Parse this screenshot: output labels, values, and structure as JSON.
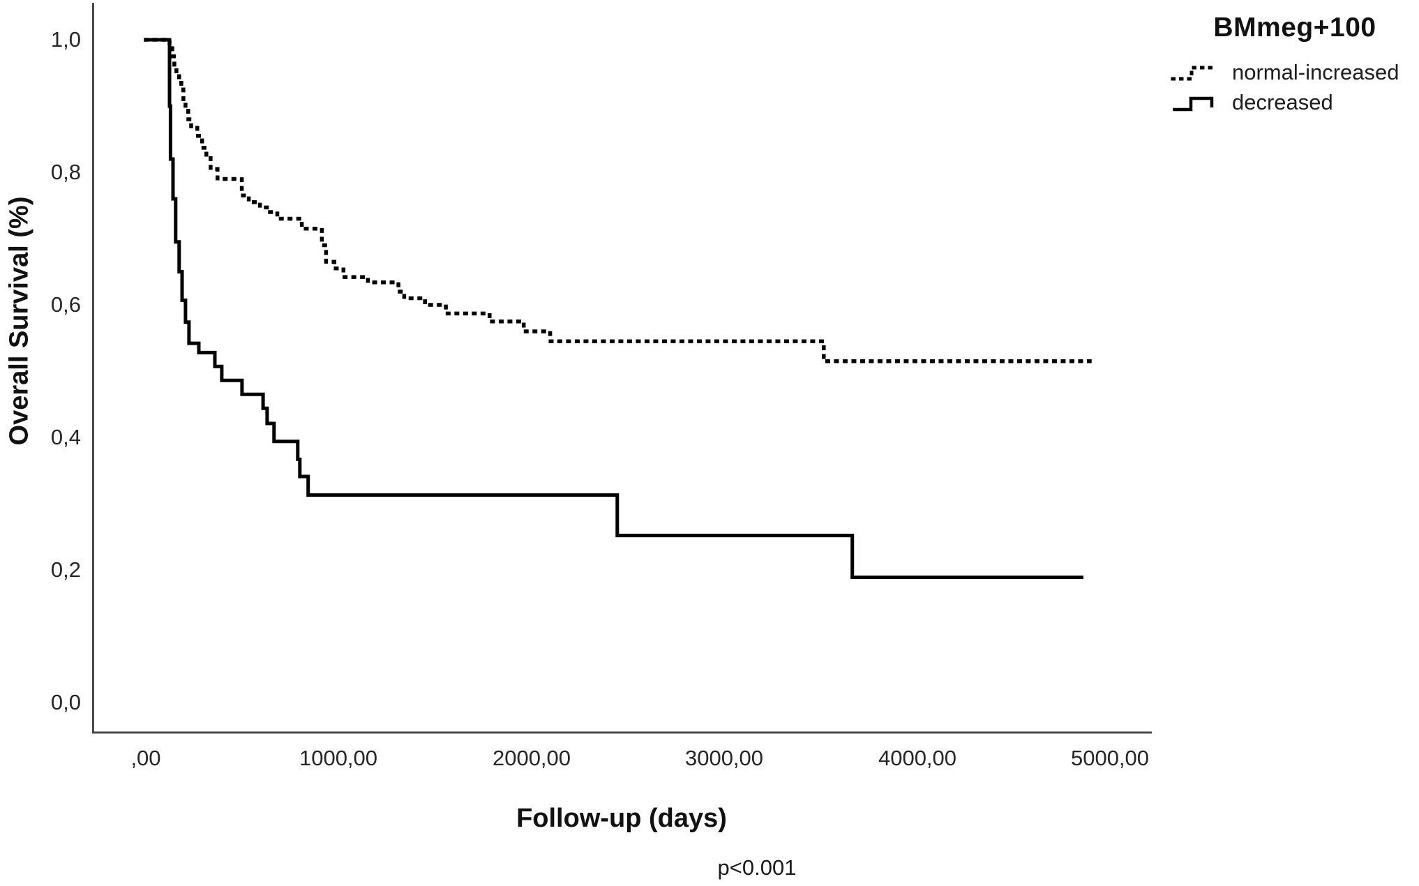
{
  "figure": {
    "y_axis_title": "Overall Survival (%)",
    "x_axis_title": "Follow-up (days)",
    "p_value": "p<0.001"
  },
  "legend": {
    "title": "BMmeg+100",
    "items": [
      {
        "label": "normal-increased",
        "style": "dashed"
      },
      {
        "label": "decreased",
        "style": "solid"
      }
    ]
  },
  "colors": {
    "background": "#ffffff",
    "axis": "#4a4a4a",
    "text": "#1a1a1a",
    "curve": "#000000"
  },
  "chart_data": {
    "type": "line",
    "subtype": "kaplan-meier-step",
    "title": "",
    "xlabel": "Follow-up (days)",
    "ylabel": "Overall Survival (%)",
    "annotation": "p<0.001",
    "legend_title": "BMmeg+100",
    "legend_position": "top-right",
    "grid": false,
    "xlim": [
      0,
      5000
    ],
    "ylim": [
      0.0,
      1.0
    ],
    "x_ticks": [
      0,
      1000,
      2000,
      3000,
      4000,
      5000
    ],
    "x_tick_labels": [
      ",00",
      "1000,00",
      "2000,00",
      "3000,00",
      "4000,00",
      "5000,00"
    ],
    "y_ticks": [
      0.0,
      0.2,
      0.4,
      0.6,
      0.8,
      1.0
    ],
    "y_tick_labels": [
      "0,0",
      "0,2",
      "0,4",
      "0,6",
      "0,8",
      "1,0"
    ],
    "series": [
      {
        "name": "normal-increased",
        "line": "dashed",
        "color": "#000000",
        "end_day": 4895,
        "steps": [
          [
            0,
            1.0
          ],
          [
            123,
            0.99
          ],
          [
            137,
            0.975
          ],
          [
            148,
            0.96
          ],
          [
            159,
            0.95
          ],
          [
            173,
            0.935
          ],
          [
            184,
            0.925
          ],
          [
            195,
            0.91
          ],
          [
            206,
            0.9
          ],
          [
            220,
            0.88
          ],
          [
            235,
            0.868
          ],
          [
            267,
            0.855
          ],
          [
            292,
            0.837
          ],
          [
            314,
            0.824
          ],
          [
            336,
            0.805
          ],
          [
            372,
            0.79
          ],
          [
            498,
            0.765
          ],
          [
            534,
            0.755
          ],
          [
            592,
            0.747
          ],
          [
            635,
            0.74
          ],
          [
            682,
            0.73
          ],
          [
            809,
            0.715
          ],
          [
            913,
            0.69
          ],
          [
            935,
            0.665
          ],
          [
            978,
            0.655
          ],
          [
            1025,
            0.642
          ],
          [
            1152,
            0.634
          ],
          [
            1310,
            0.62
          ],
          [
            1340,
            0.61
          ],
          [
            1448,
            0.6
          ],
          [
            1556,
            0.587
          ],
          [
            1783,
            0.575
          ],
          [
            1960,
            0.56
          ],
          [
            2097,
            0.545
          ],
          [
            3516,
            0.515
          ]
        ]
      },
      {
        "name": "decreased",
        "line": "solid",
        "color": "#000000",
        "end_day": 4862,
        "steps": [
          [
            0,
            1.0
          ],
          [
            123,
            0.9
          ],
          [
            128,
            0.82
          ],
          [
            141,
            0.76
          ],
          [
            155,
            0.695
          ],
          [
            173,
            0.65
          ],
          [
            188,
            0.607
          ],
          [
            206,
            0.574
          ],
          [
            224,
            0.542
          ],
          [
            275,
            0.528
          ],
          [
            358,
            0.507
          ],
          [
            394,
            0.486
          ],
          [
            499,
            0.465
          ],
          [
            608,
            0.444
          ],
          [
            629,
            0.421
          ],
          [
            665,
            0.394
          ],
          [
            788,
            0.367
          ],
          [
            799,
            0.341
          ],
          [
            842,
            0.313
          ],
          [
            2445,
            0.252
          ],
          [
            3664,
            0.189
          ]
        ]
      }
    ]
  }
}
